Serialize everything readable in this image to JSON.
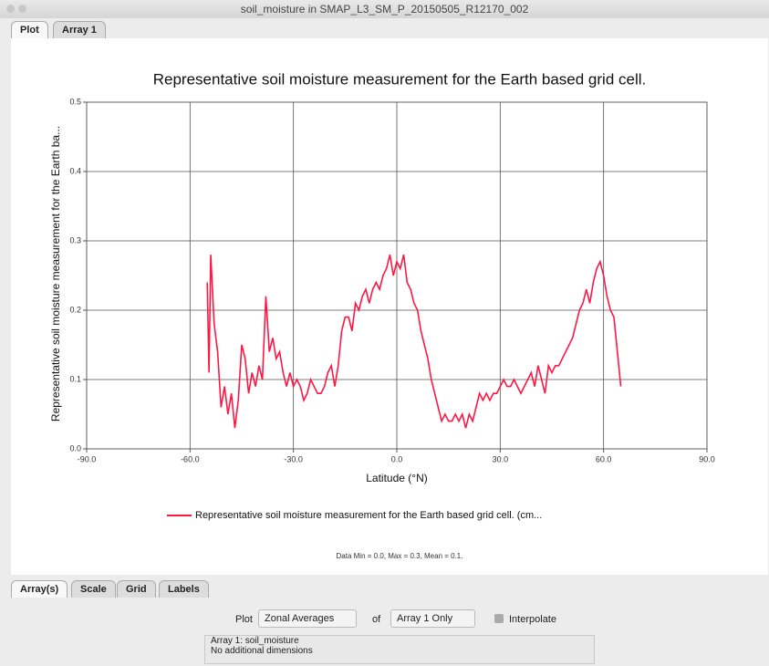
{
  "window": {
    "title": "soil_moisture in SMAP_L3_SM_P_20150505_R12170_002"
  },
  "tabs": [
    "Plot",
    "Array 1"
  ],
  "chart_data": {
    "type": "line",
    "title": "Representative soil moisture measurement for the Earth based grid cell.",
    "xlabel": "Latitude (°N)",
    "ylabel": "Representative soil moisture measurement for the Earth ba...",
    "x": [
      -55,
      -54.5,
      -54,
      -53,
      -52,
      -51,
      -50,
      -49,
      -48,
      -47,
      -46,
      -45,
      -44,
      -43,
      -42,
      -41,
      -40,
      -39,
      -38,
      -37,
      -36,
      -35,
      -34,
      -33,
      -32,
      -31,
      -30,
      -29,
      -28,
      -27,
      -26,
      -25,
      -24,
      -23,
      -22,
      -21,
      -20,
      -19,
      -18,
      -17,
      -16,
      -15,
      -14,
      -13,
      -12,
      -11,
      -10,
      -9,
      -8,
      -7,
      -6,
      -5,
      -4,
      -3,
      -2,
      -1,
      0,
      1,
      2,
      3,
      4,
      5,
      6,
      7,
      8,
      9,
      10,
      11,
      12,
      13,
      14,
      15,
      16,
      17,
      18,
      19,
      20,
      21,
      22,
      23,
      24,
      25,
      26,
      27,
      28,
      29,
      30,
      31,
      32,
      33,
      34,
      35,
      36,
      37,
      38,
      39,
      40,
      41,
      42,
      43,
      44,
      45,
      46,
      47,
      48,
      49,
      50,
      51,
      52,
      53,
      54,
      55,
      56,
      57,
      58,
      59,
      60,
      61,
      62,
      63,
      64,
      65
    ],
    "series": [
      {
        "name": "Representative soil moisture measurement for the Earth based grid cell. (cm...",
        "color": "#ff1744",
        "values": [
          0.24,
          0.11,
          0.28,
          0.18,
          0.14,
          0.06,
          0.09,
          0.05,
          0.08,
          0.03,
          0.07,
          0.15,
          0.13,
          0.08,
          0.11,
          0.09,
          0.12,
          0.1,
          0.22,
          0.14,
          0.16,
          0.13,
          0.14,
          0.11,
          0.09,
          0.11,
          0.09,
          0.1,
          0.09,
          0.07,
          0.08,
          0.1,
          0.09,
          0.08,
          0.08,
          0.09,
          0.11,
          0.12,
          0.09,
          0.12,
          0.17,
          0.19,
          0.19,
          0.17,
          0.21,
          0.2,
          0.22,
          0.23,
          0.21,
          0.23,
          0.24,
          0.23,
          0.25,
          0.26,
          0.28,
          0.25,
          0.27,
          0.26,
          0.28,
          0.24,
          0.23,
          0.21,
          0.2,
          0.17,
          0.15,
          0.13,
          0.1,
          0.08,
          0.06,
          0.04,
          0.05,
          0.04,
          0.04,
          0.05,
          0.04,
          0.05,
          0.03,
          0.05,
          0.04,
          0.06,
          0.08,
          0.07,
          0.08,
          0.07,
          0.08,
          0.08,
          0.09,
          0.1,
          0.09,
          0.09,
          0.1,
          0.09,
          0.08,
          0.09,
          0.1,
          0.11,
          0.09,
          0.12,
          0.1,
          0.08,
          0.12,
          0.11,
          0.12,
          0.12,
          0.13,
          0.14,
          0.15,
          0.16,
          0.18,
          0.2,
          0.21,
          0.23,
          0.21,
          0.24,
          0.26,
          0.27,
          0.25,
          0.22,
          0.2,
          0.19,
          0.14,
          0.09
        ]
      }
    ],
    "xlim": [
      -90,
      90
    ],
    "xticks": [
      {
        "value": -90,
        "label": "-90.0"
      },
      {
        "value": -60,
        "label": "-60.0"
      },
      {
        "value": -30,
        "label": "-30.0"
      },
      {
        "value": 0,
        "label": "0.0"
      },
      {
        "value": 30,
        "label": "30.0"
      },
      {
        "value": 60,
        "label": "60.0"
      },
      {
        "value": 90,
        "label": "90.0"
      }
    ],
    "ylim": [
      0,
      0.5
    ],
    "yticks": [
      {
        "value": 0,
        "label": "0.0"
      },
      0.1,
      0.2,
      0.3,
      0.4,
      0.5
    ],
    "grid": true,
    "stats": "Data Min = 0.0, Max = 0.3, Mean = 0.1."
  },
  "bottom_tabs": [
    "Array(s)",
    "Scale",
    "Grid",
    "Labels"
  ],
  "controls": {
    "plot_label": "Plot",
    "plot_select": "Zonal Averages",
    "of_label": "of",
    "array_select": "Array 1 Only",
    "interpolate": "Interpolate"
  },
  "info": [
    "Array 1: soil_moisture",
    "No additional dimensions"
  ]
}
